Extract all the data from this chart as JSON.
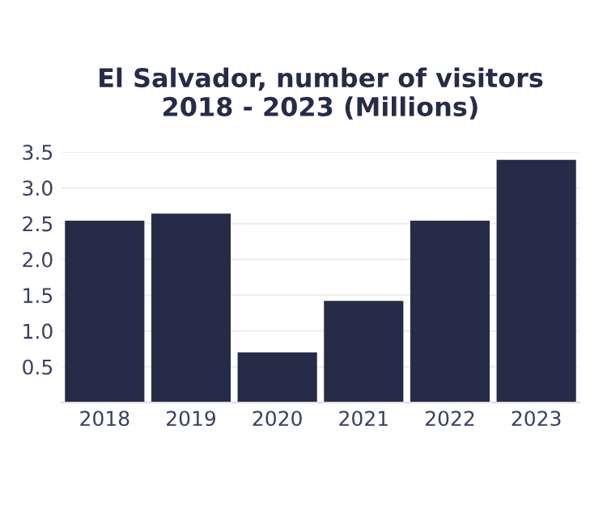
{
  "chart_data": {
    "type": "bar",
    "title": "El Salvador, number of visitors\n2018 - 2023 (Millions)",
    "categories": [
      "2018",
      "2019",
      "2020",
      "2021",
      "2022",
      "2023"
    ],
    "values": [
      2.54,
      2.64,
      0.7,
      1.42,
      2.54,
      3.39
    ],
    "color": "#262b48",
    "ylim": [
      0,
      3.5
    ],
    "yticks": [
      {
        "value": 0,
        "label": null
      },
      0.5,
      {
        "value": 1,
        "label": "1.0"
      },
      1.5,
      {
        "value": 2,
        "label": "2.0"
      },
      2.5,
      {
        "value": 3,
        "label": "3.0"
      },
      3.5
    ],
    "grid": "y"
  }
}
